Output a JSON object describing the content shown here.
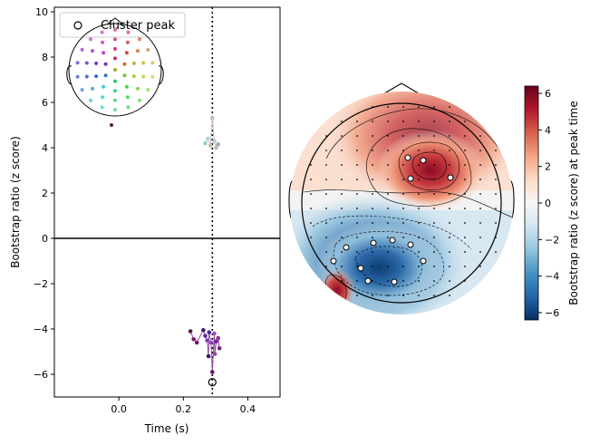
{
  "chart_data": [
    {
      "type": "scatter",
      "xlabel": "Time (s)",
      "ylabel": "Bootstrap ratio (z score)",
      "xlim": [
        -0.2,
        0.5
      ],
      "ylim": [
        -7,
        10.2
      ],
      "xticks": [
        0.0,
        0.2,
        0.4
      ],
      "yticks": [
        -6,
        -4,
        -2,
        0,
        2,
        4,
        6,
        8,
        10
      ],
      "xtick_labels": [
        "0.0",
        "0.2",
        "0.4"
      ],
      "ytick_labels": [
        "−6",
        "−4",
        "−2",
        "0",
        "2",
        "4",
        "6",
        "8",
        "10"
      ],
      "zero_line": 0,
      "peak_time": 0.29,
      "legend": {
        "label": "Cluster peak",
        "placement": "top-left"
      },
      "cluster_peak": {
        "x": 0.29,
        "y": -6.35
      },
      "series": [
        {
          "points": [
            {
              "x": 0.268,
              "y": 4.2,
              "color": "#8fd0c8"
            },
            {
              "x": 0.276,
              "y": 4.4,
              "color": "#a7d8cf"
            },
            {
              "x": 0.284,
              "y": 4.1,
              "color": "#b9c4a8"
            },
            {
              "x": 0.29,
              "y": 5.3,
              "color": "#d0b8c8"
            },
            {
              "x": 0.296,
              "y": 4.3,
              "color": "#c2bfd4"
            },
            {
              "x": 0.302,
              "y": 4.0,
              "color": "#b7b7c3"
            },
            {
              "x": 0.308,
              "y": 4.15,
              "color": "#9fa6b0"
            }
          ]
        },
        {
          "points": [
            {
              "x": 0.222,
              "y": -4.1,
              "color": "#5a1848"
            },
            {
              "x": 0.232,
              "y": -4.45,
              "color": "#7a1e6a"
            },
            {
              "x": 0.242,
              "y": -4.6,
              "color": "#6c1b7e"
            },
            {
              "x": 0.262,
              "y": -4.05,
              "color": "#3c1a78"
            },
            {
              "x": 0.268,
              "y": -4.3,
              "color": "#5a2ea0"
            },
            {
              "x": 0.274,
              "y": -4.5,
              "color": "#7d3fb8"
            },
            {
              "x": 0.28,
              "y": -4.15,
              "color": "#4a1f8a"
            },
            {
              "x": 0.286,
              "y": -4.6,
              "color": "#8e44c0"
            },
            {
              "x": 0.29,
              "y": -5.9,
              "color": "#5b1a6a"
            },
            {
              "x": 0.296,
              "y": -4.2,
              "color": "#a24dc6"
            },
            {
              "x": 0.302,
              "y": -4.55,
              "color": "#6a2aa6"
            },
            {
              "x": 0.308,
              "y": -4.4,
              "color": "#8b2f8f"
            },
            {
              "x": 0.312,
              "y": -4.85,
              "color": "#7b1f7f"
            },
            {
              "x": 0.278,
              "y": -5.2,
              "color": "#4b1470"
            },
            {
              "x": 0.298,
              "y": -5.1,
              "color": "#a040b0"
            }
          ]
        }
      ]
    },
    {
      "type": "heatmap",
      "colorbar_label": "Bootstrap ratio (z score) at peak time",
      "clim": [
        -6.4,
        6.4
      ],
      "colorbar_ticks": [
        -6,
        -4,
        -2,
        0,
        2,
        4,
        6
      ],
      "colorbar_tick_labels": [
        "−6",
        "−4",
        "−2",
        "0",
        "2",
        "4",
        "6"
      ],
      "colormap": "RdBu_r",
      "colors": {
        "min": "#053061",
        "mid": "#f7f7f7",
        "max": "#67001f"
      }
    }
  ]
}
